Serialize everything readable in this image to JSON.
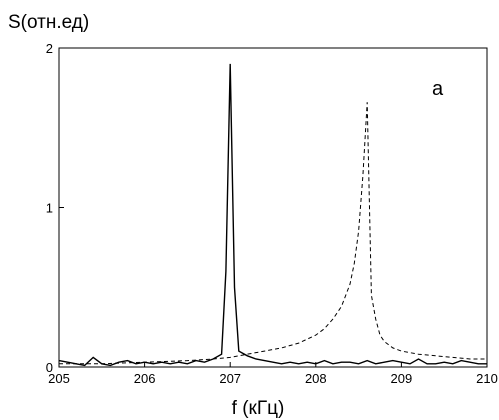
{
  "chart_data": {
    "type": "line",
    "ylabel": "S(отн.ед)",
    "xlabel": "f (кГц)",
    "annotation": "a",
    "xlim": [
      205,
      210
    ],
    "ylim": [
      0,
      2
    ],
    "x_ticks": [
      "205",
      "206",
      "207",
      "208",
      "209",
      "210"
    ],
    "y_ticks": [
      "0",
      "1",
      "2"
    ],
    "grid": false,
    "series": [
      {
        "style": "solid",
        "x": [
          205.0,
          205.1,
          205.2,
          205.3,
          205.4,
          205.5,
          205.6,
          205.7,
          205.8,
          205.9,
          206.0,
          206.1,
          206.2,
          206.3,
          206.4,
          206.5,
          206.6,
          206.7,
          206.8,
          206.9,
          206.95,
          207.0,
          207.05,
          207.1,
          207.2,
          207.3,
          207.4,
          207.5,
          207.6,
          207.7,
          207.8,
          207.9,
          208.0,
          208.1,
          208.2,
          208.3,
          208.4,
          208.5,
          208.6,
          208.7,
          208.8,
          208.9,
          209.0,
          209.1,
          209.2,
          209.3,
          209.4,
          209.5,
          209.6,
          209.7,
          209.8,
          209.9,
          210.0
        ],
        "y": [
          0.04,
          0.03,
          0.02,
          0.01,
          0.06,
          0.02,
          0.01,
          0.03,
          0.04,
          0.02,
          0.03,
          0.02,
          0.03,
          0.02,
          0.03,
          0.02,
          0.04,
          0.03,
          0.05,
          0.08,
          0.6,
          1.9,
          0.5,
          0.1,
          0.07,
          0.05,
          0.04,
          0.03,
          0.02,
          0.03,
          0.02,
          0.03,
          0.02,
          0.04,
          0.02,
          0.03,
          0.03,
          0.02,
          0.04,
          0.02,
          0.03,
          0.04,
          0.03,
          0.02,
          0.05,
          0.02,
          0.02,
          0.03,
          0.02,
          0.04,
          0.03,
          0.02,
          0.02
        ]
      },
      {
        "style": "dashed",
        "x": [
          205.0,
          205.5,
          206.0,
          206.5,
          206.8,
          207.0,
          207.2,
          207.4,
          207.6,
          207.8,
          208.0,
          208.1,
          208.2,
          208.3,
          208.4,
          208.45,
          208.5,
          208.55,
          208.6,
          208.65,
          208.7,
          208.75,
          208.8,
          208.9,
          209.0,
          209.2,
          209.4,
          209.6,
          209.8,
          210.0
        ],
        "y": [
          0.02,
          0.02,
          0.03,
          0.04,
          0.05,
          0.06,
          0.08,
          0.1,
          0.12,
          0.15,
          0.2,
          0.24,
          0.3,
          0.38,
          0.52,
          0.65,
          0.85,
          1.2,
          1.66,
          0.45,
          0.3,
          0.2,
          0.16,
          0.12,
          0.1,
          0.08,
          0.07,
          0.06,
          0.05,
          0.05
        ]
      }
    ]
  }
}
